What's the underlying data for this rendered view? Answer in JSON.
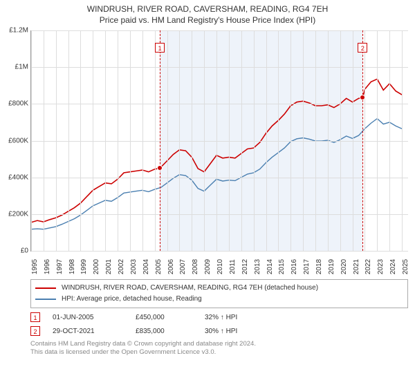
{
  "title": {
    "main": "WINDRUSH, RIVER ROAD, CAVERSHAM, READING, RG4 7EH",
    "sub": "Price paid vs. HM Land Registry's House Price Index (HPI)"
  },
  "chart": {
    "type": "line",
    "background_color": "#ffffff",
    "grid_color": "#dddddd",
    "axis_color": "#999999",
    "shaded_band": {
      "x_start": 2005.42,
      "x_end": 2021.83,
      "color": "#eef3fa"
    },
    "xlim": [
      1995,
      2025.5
    ],
    "ylim": [
      0,
      1200000
    ],
    "y_ticks": [
      0,
      200000,
      400000,
      600000,
      800000,
      1000000,
      1200000
    ],
    "y_tick_labels": [
      "£0",
      "£200K",
      "£400K",
      "£600K",
      "£800K",
      "£1M",
      "£1.2M"
    ],
    "x_ticks": [
      1995,
      1996,
      1997,
      1998,
      1999,
      2000,
      2001,
      2002,
      2003,
      2004,
      2005,
      2006,
      2007,
      2008,
      2009,
      2010,
      2011,
      2012,
      2013,
      2014,
      2015,
      2016,
      2017,
      2018,
      2019,
      2020,
      2021,
      2022,
      2023,
      2024,
      2025
    ],
    "x_tick_labels": [
      "1995",
      "1996",
      "1997",
      "1998",
      "1999",
      "2000",
      "2001",
      "2002",
      "2003",
      "2004",
      "2005",
      "2006",
      "2007",
      "2008",
      "2009",
      "2010",
      "2011",
      "2012",
      "2013",
      "2014",
      "2015",
      "2016",
      "2017",
      "2018",
      "2019",
      "2020",
      "2021",
      "2022",
      "2023",
      "2024",
      "2025"
    ],
    "label_fontsize": 10,
    "series": [
      {
        "name": "property",
        "label": "WINDRUSH, RIVER ROAD, CAVERSHAM, READING, RG4 7EH (detached house)",
        "color": "#cc0000",
        "line_width": 1.6,
        "data": [
          [
            1995,
            155000
          ],
          [
            1995.5,
            165000
          ],
          [
            1996,
            158000
          ],
          [
            1996.5,
            170000
          ],
          [
            1997,
            180000
          ],
          [
            1997.5,
            195000
          ],
          [
            1998,
            215000
          ],
          [
            1998.5,
            235000
          ],
          [
            1999,
            260000
          ],
          [
            1999.5,
            295000
          ],
          [
            2000,
            330000
          ],
          [
            2000.5,
            350000
          ],
          [
            2001,
            370000
          ],
          [
            2001.5,
            365000
          ],
          [
            2002,
            390000
          ],
          [
            2002.5,
            425000
          ],
          [
            2003,
            430000
          ],
          [
            2003.5,
            435000
          ],
          [
            2004,
            440000
          ],
          [
            2004.5,
            430000
          ],
          [
            2005,
            445000
          ],
          [
            2005.42,
            450000
          ],
          [
            2006,
            490000
          ],
          [
            2006.5,
            525000
          ],
          [
            2007,
            550000
          ],
          [
            2007.5,
            545000
          ],
          [
            2008,
            510000
          ],
          [
            2008.5,
            448000
          ],
          [
            2009,
            430000
          ],
          [
            2009.5,
            475000
          ],
          [
            2010,
            520000
          ],
          [
            2010.5,
            505000
          ],
          [
            2011,
            510000
          ],
          [
            2011.5,
            505000
          ],
          [
            2012,
            530000
          ],
          [
            2012.5,
            555000
          ],
          [
            2013,
            560000
          ],
          [
            2013.5,
            590000
          ],
          [
            2014,
            640000
          ],
          [
            2014.5,
            680000
          ],
          [
            2015,
            710000
          ],
          [
            2015.5,
            745000
          ],
          [
            2016,
            790000
          ],
          [
            2016.5,
            810000
          ],
          [
            2017,
            815000
          ],
          [
            2017.5,
            805000
          ],
          [
            2018,
            790000
          ],
          [
            2018.5,
            790000
          ],
          [
            2019,
            795000
          ],
          [
            2019.5,
            780000
          ],
          [
            2020,
            800000
          ],
          [
            2020.5,
            830000
          ],
          [
            2021,
            810000
          ],
          [
            2021.5,
            830000
          ],
          [
            2021.83,
            835000
          ],
          [
            2022,
            880000
          ],
          [
            2022.5,
            920000
          ],
          [
            2023,
            935000
          ],
          [
            2023.5,
            875000
          ],
          [
            2024,
            910000
          ],
          [
            2024.5,
            870000
          ],
          [
            2025,
            850000
          ]
        ]
      },
      {
        "name": "hpi",
        "label": "HPI: Average price, detached house, Reading",
        "color": "#4a7fb0",
        "line_width": 1.4,
        "data": [
          [
            1995,
            118000
          ],
          [
            1995.5,
            120000
          ],
          [
            1996,
            118000
          ],
          [
            1996.5,
            125000
          ],
          [
            1997,
            132000
          ],
          [
            1997.5,
            145000
          ],
          [
            1998,
            160000
          ],
          [
            1998.5,
            175000
          ],
          [
            1999,
            195000
          ],
          [
            1999.5,
            220000
          ],
          [
            2000,
            245000
          ],
          [
            2000.5,
            260000
          ],
          [
            2001,
            275000
          ],
          [
            2001.5,
            270000
          ],
          [
            2002,
            290000
          ],
          [
            2002.5,
            315000
          ],
          [
            2003,
            320000
          ],
          [
            2003.5,
            325000
          ],
          [
            2004,
            330000
          ],
          [
            2004.5,
            322000
          ],
          [
            2005,
            335000
          ],
          [
            2005.5,
            345000
          ],
          [
            2006,
            370000
          ],
          [
            2006.5,
            395000
          ],
          [
            2007,
            415000
          ],
          [
            2007.5,
            410000
          ],
          [
            2008,
            385000
          ],
          [
            2008.5,
            340000
          ],
          [
            2009,
            325000
          ],
          [
            2009.5,
            358000
          ],
          [
            2010,
            390000
          ],
          [
            2010.5,
            380000
          ],
          [
            2011,
            385000
          ],
          [
            2011.5,
            382000
          ],
          [
            2012,
            400000
          ],
          [
            2012.5,
            418000
          ],
          [
            2013,
            425000
          ],
          [
            2013.5,
            445000
          ],
          [
            2014,
            480000
          ],
          [
            2014.5,
            510000
          ],
          [
            2015,
            535000
          ],
          [
            2015.5,
            560000
          ],
          [
            2016,
            595000
          ],
          [
            2016.5,
            610000
          ],
          [
            2017,
            615000
          ],
          [
            2017.5,
            608000
          ],
          [
            2018,
            598000
          ],
          [
            2018.5,
            598000
          ],
          [
            2019,
            602000
          ],
          [
            2019.5,
            590000
          ],
          [
            2020,
            605000
          ],
          [
            2020.5,
            625000
          ],
          [
            2021,
            612000
          ],
          [
            2021.5,
            628000
          ],
          [
            2022,
            665000
          ],
          [
            2022.5,
            695000
          ],
          [
            2023,
            720000
          ],
          [
            2023.5,
            690000
          ],
          [
            2024,
            700000
          ],
          [
            2024.5,
            680000
          ],
          [
            2025,
            665000
          ]
        ]
      }
    ],
    "markers": [
      {
        "id": "1",
        "x": 2005.42,
        "y": 450000,
        "box_top_offset": 18
      },
      {
        "id": "2",
        "x": 2021.83,
        "y": 835000,
        "box_top_offset": 18
      }
    ]
  },
  "legend": {
    "items": [
      {
        "color": "#cc0000",
        "label": "WINDRUSH, RIVER ROAD, CAVERSHAM, READING, RG4 7EH (detached house)"
      },
      {
        "color": "#4a7fb0",
        "label": "HPI: Average price, detached house, Reading"
      }
    ]
  },
  "footnotes": [
    {
      "id": "1",
      "date": "01-JUN-2005",
      "price": "£450,000",
      "delta": "32% ↑ HPI"
    },
    {
      "id": "2",
      "date": "29-OCT-2021",
      "price": "£835,000",
      "delta": "30% ↑ HPI"
    }
  ],
  "attribution": {
    "line1": "Contains HM Land Registry data © Crown copyright and database right 2024.",
    "line2": "This data is licensed under the Open Government Licence v3.0."
  }
}
